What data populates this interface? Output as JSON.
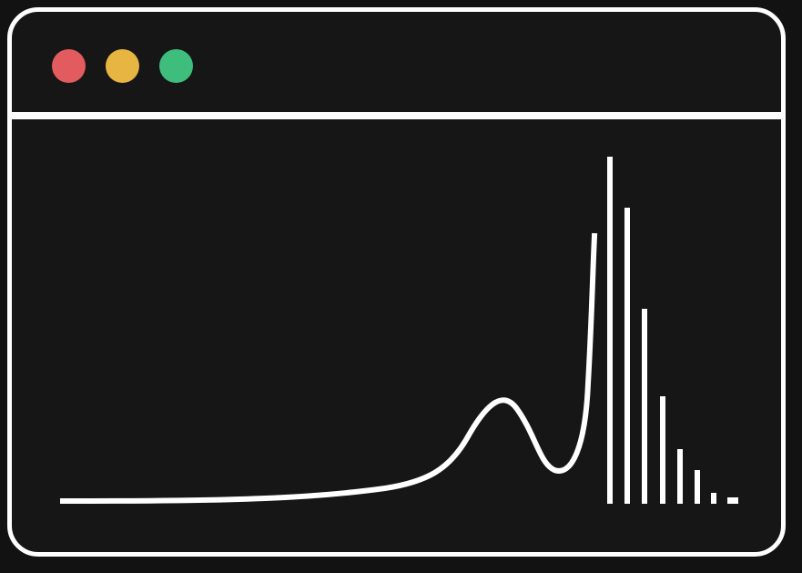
{
  "window": {
    "controls": [
      {
        "name": "close-button",
        "color": "#e25b5f"
      },
      {
        "name": "minimize-button",
        "color": "#e7b542"
      },
      {
        "name": "maximize-button",
        "color": "#3fbd7c"
      }
    ]
  },
  "graphic": {
    "stroke_color": "#ffffff",
    "description_icon": "spectrum-curve-with-bars-icon"
  }
}
